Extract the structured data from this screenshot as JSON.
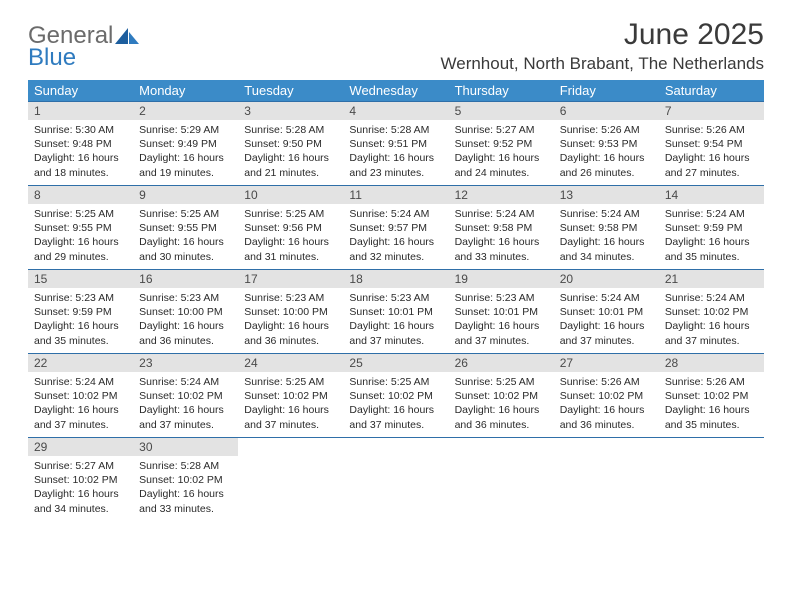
{
  "brand": {
    "word1": "General",
    "word2": "Blue",
    "color_general": "#6b6b6b",
    "color_blue": "#2f7bbf",
    "mark_color": "#1d5e9e"
  },
  "header": {
    "month_title": "June 2025",
    "location": "Wernhout, North Brabant, The Netherlands"
  },
  "colors": {
    "header_bg": "#3b8bc8",
    "header_text": "#ffffff",
    "row_border": "#2f6fa8",
    "daynum_bg": "#e3e3e3",
    "daynum_text": "#4a4a4a",
    "body_text": "#2a2a2a",
    "page_bg": "#ffffff"
  },
  "weekdays": [
    "Sunday",
    "Monday",
    "Tuesday",
    "Wednesday",
    "Thursday",
    "Friday",
    "Saturday"
  ],
  "days": [
    {
      "n": "1",
      "sunrise": "Sunrise: 5:30 AM",
      "sunset": "Sunset: 9:48 PM",
      "day1": "Daylight: 16 hours",
      "day2": "and 18 minutes."
    },
    {
      "n": "2",
      "sunrise": "Sunrise: 5:29 AM",
      "sunset": "Sunset: 9:49 PM",
      "day1": "Daylight: 16 hours",
      "day2": "and 19 minutes."
    },
    {
      "n": "3",
      "sunrise": "Sunrise: 5:28 AM",
      "sunset": "Sunset: 9:50 PM",
      "day1": "Daylight: 16 hours",
      "day2": "and 21 minutes."
    },
    {
      "n": "4",
      "sunrise": "Sunrise: 5:28 AM",
      "sunset": "Sunset: 9:51 PM",
      "day1": "Daylight: 16 hours",
      "day2": "and 23 minutes."
    },
    {
      "n": "5",
      "sunrise": "Sunrise: 5:27 AM",
      "sunset": "Sunset: 9:52 PM",
      "day1": "Daylight: 16 hours",
      "day2": "and 24 minutes."
    },
    {
      "n": "6",
      "sunrise": "Sunrise: 5:26 AM",
      "sunset": "Sunset: 9:53 PM",
      "day1": "Daylight: 16 hours",
      "day2": "and 26 minutes."
    },
    {
      "n": "7",
      "sunrise": "Sunrise: 5:26 AM",
      "sunset": "Sunset: 9:54 PM",
      "day1": "Daylight: 16 hours",
      "day2": "and 27 minutes."
    },
    {
      "n": "8",
      "sunrise": "Sunrise: 5:25 AM",
      "sunset": "Sunset: 9:55 PM",
      "day1": "Daylight: 16 hours",
      "day2": "and 29 minutes."
    },
    {
      "n": "9",
      "sunrise": "Sunrise: 5:25 AM",
      "sunset": "Sunset: 9:55 PM",
      "day1": "Daylight: 16 hours",
      "day2": "and 30 minutes."
    },
    {
      "n": "10",
      "sunrise": "Sunrise: 5:25 AM",
      "sunset": "Sunset: 9:56 PM",
      "day1": "Daylight: 16 hours",
      "day2": "and 31 minutes."
    },
    {
      "n": "11",
      "sunrise": "Sunrise: 5:24 AM",
      "sunset": "Sunset: 9:57 PM",
      "day1": "Daylight: 16 hours",
      "day2": "and 32 minutes."
    },
    {
      "n": "12",
      "sunrise": "Sunrise: 5:24 AM",
      "sunset": "Sunset: 9:58 PM",
      "day1": "Daylight: 16 hours",
      "day2": "and 33 minutes."
    },
    {
      "n": "13",
      "sunrise": "Sunrise: 5:24 AM",
      "sunset": "Sunset: 9:58 PM",
      "day1": "Daylight: 16 hours",
      "day2": "and 34 minutes."
    },
    {
      "n": "14",
      "sunrise": "Sunrise: 5:24 AM",
      "sunset": "Sunset: 9:59 PM",
      "day1": "Daylight: 16 hours",
      "day2": "and 35 minutes."
    },
    {
      "n": "15",
      "sunrise": "Sunrise: 5:23 AM",
      "sunset": "Sunset: 9:59 PM",
      "day1": "Daylight: 16 hours",
      "day2": "and 35 minutes."
    },
    {
      "n": "16",
      "sunrise": "Sunrise: 5:23 AM",
      "sunset": "Sunset: 10:00 PM",
      "day1": "Daylight: 16 hours",
      "day2": "and 36 minutes."
    },
    {
      "n": "17",
      "sunrise": "Sunrise: 5:23 AM",
      "sunset": "Sunset: 10:00 PM",
      "day1": "Daylight: 16 hours",
      "day2": "and 36 minutes."
    },
    {
      "n": "18",
      "sunrise": "Sunrise: 5:23 AM",
      "sunset": "Sunset: 10:01 PM",
      "day1": "Daylight: 16 hours",
      "day2": "and 37 minutes."
    },
    {
      "n": "19",
      "sunrise": "Sunrise: 5:23 AM",
      "sunset": "Sunset: 10:01 PM",
      "day1": "Daylight: 16 hours",
      "day2": "and 37 minutes."
    },
    {
      "n": "20",
      "sunrise": "Sunrise: 5:24 AM",
      "sunset": "Sunset: 10:01 PM",
      "day1": "Daylight: 16 hours",
      "day2": "and 37 minutes."
    },
    {
      "n": "21",
      "sunrise": "Sunrise: 5:24 AM",
      "sunset": "Sunset: 10:02 PM",
      "day1": "Daylight: 16 hours",
      "day2": "and 37 minutes."
    },
    {
      "n": "22",
      "sunrise": "Sunrise: 5:24 AM",
      "sunset": "Sunset: 10:02 PM",
      "day1": "Daylight: 16 hours",
      "day2": "and 37 minutes."
    },
    {
      "n": "23",
      "sunrise": "Sunrise: 5:24 AM",
      "sunset": "Sunset: 10:02 PM",
      "day1": "Daylight: 16 hours",
      "day2": "and 37 minutes."
    },
    {
      "n": "24",
      "sunrise": "Sunrise: 5:25 AM",
      "sunset": "Sunset: 10:02 PM",
      "day1": "Daylight: 16 hours",
      "day2": "and 37 minutes."
    },
    {
      "n": "25",
      "sunrise": "Sunrise: 5:25 AM",
      "sunset": "Sunset: 10:02 PM",
      "day1": "Daylight: 16 hours",
      "day2": "and 37 minutes."
    },
    {
      "n": "26",
      "sunrise": "Sunrise: 5:25 AM",
      "sunset": "Sunset: 10:02 PM",
      "day1": "Daylight: 16 hours",
      "day2": "and 36 minutes."
    },
    {
      "n": "27",
      "sunrise": "Sunrise: 5:26 AM",
      "sunset": "Sunset: 10:02 PM",
      "day1": "Daylight: 16 hours",
      "day2": "and 36 minutes."
    },
    {
      "n": "28",
      "sunrise": "Sunrise: 5:26 AM",
      "sunset": "Sunset: 10:02 PM",
      "day1": "Daylight: 16 hours",
      "day2": "and 35 minutes."
    },
    {
      "n": "29",
      "sunrise": "Sunrise: 5:27 AM",
      "sunset": "Sunset: 10:02 PM",
      "day1": "Daylight: 16 hours",
      "day2": "and 34 minutes."
    },
    {
      "n": "30",
      "sunrise": "Sunrise: 5:28 AM",
      "sunset": "Sunset: 10:02 PM",
      "day1": "Daylight: 16 hours",
      "day2": "and 33 minutes."
    }
  ]
}
